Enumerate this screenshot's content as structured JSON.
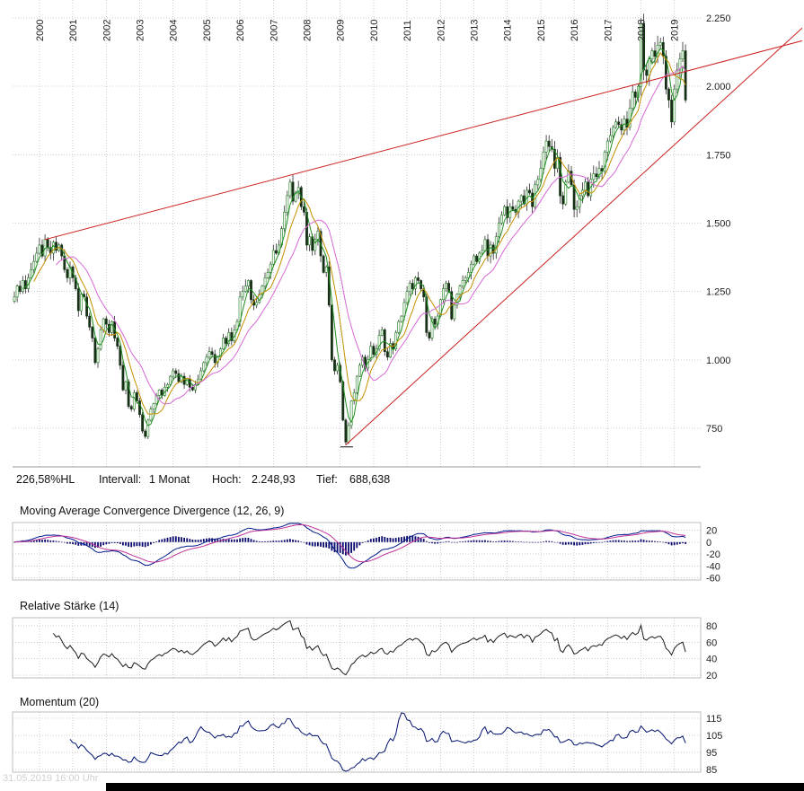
{
  "status": {
    "range": "226,58%HL",
    "interval_label": "Intervall:",
    "interval_value": "1 Monat",
    "high_label": "Hoch:",
    "high_value": "2.248,93",
    "low_label": "Tief:",
    "low_value": "688,638"
  },
  "footer": {
    "timestamp": "31.05.2019 16:00 Uhr"
  },
  "colors": {
    "grid": "#cdcdcd",
    "trendline": "#cc2222",
    "wick": "#2b2b2b",
    "candle_up_fill": "#ffffff",
    "candle_up_stroke": "#1e7d1e",
    "candle_down_fill": "#173017",
    "macd_line": "#001a8b",
    "macd_signal": "#c03399",
    "macd_hist": "#0a0a6e",
    "rsi_line": "#1a1a1a",
    "momentum_line": "#00106e"
  },
  "chart_data": [
    {
      "type": "candlestick",
      "interval": "1 Monat",
      "start": "1999-04",
      "years": [
        2000,
        2001,
        2002,
        2003,
        2004,
        2005,
        2006,
        2007,
        2008,
        2009,
        2010,
        2011,
        2012,
        2013,
        2014,
        2015,
        2016,
        2017,
        2018,
        2019
      ],
      "yticks": [
        2250,
        2000,
        1750,
        1500,
        1250,
        1000,
        750
      ],
      "ytick_labels": [
        "2.250",
        "2.000",
        "1.750",
        "1.500",
        "1.250",
        "1.000",
        "750"
      ],
      "hoch": 2248.93,
      "tief": 688.638,
      "extremes": {
        "high_index": 225,
        "high": 2248.93,
        "low_index": 119,
        "low": 688.638
      },
      "closes": [
        1230,
        1270,
        1250,
        1290,
        1260,
        1300,
        1330,
        1360,
        1390,
        1420,
        1380,
        1440,
        1410,
        1390,
        1430,
        1400,
        1420,
        1380,
        1330,
        1300,
        1340,
        1300,
        1260,
        1180,
        1240,
        1230,
        1160,
        1120,
        1080,
        990,
        1040,
        1110,
        1150,
        1130,
        1100,
        1140,
        1080,
        1050,
        980,
        890,
        920,
        830,
        820,
        880,
        850,
        800,
        740,
        720,
        780,
        820,
        840,
        870,
        890,
        870,
        900,
        910,
        940,
        960,
        950,
        920,
        940,
        910,
        930,
        900,
        890,
        910,
        930,
        960,
        990,
        1010,
        1030,
        1020,
        990,
        1010,
        1040,
        1080,
        1060,
        1100,
        1070,
        1110,
        1140,
        1230,
        1250,
        1270,
        1290,
        1220,
        1200,
        1210,
        1240,
        1270,
        1300,
        1320,
        1350,
        1400,
        1390,
        1420,
        1480,
        1540,
        1600,
        1650,
        1580,
        1610,
        1630,
        1560,
        1540,
        1420,
        1450,
        1400,
        1440,
        1470,
        1380,
        1320,
        1340,
        1200,
        1000,
        960,
        980,
        920,
        780,
        700,
        760,
        850,
        880,
        940,
        980,
        1010,
        970,
        1000,
        1050,
        1020,
        1040,
        1090,
        1110,
        1030,
        1010,
        1060,
        1040,
        1100,
        1140,
        1160,
        1210,
        1250,
        1280,
        1260,
        1300,
        1290,
        1260,
        1230,
        1100,
        1080,
        1150,
        1130,
        1160,
        1220,
        1260,
        1280,
        1250,
        1150,
        1200,
        1240,
        1270,
        1290,
        1300,
        1320,
        1350,
        1380,
        1360,
        1390,
        1400,
        1440,
        1380,
        1420,
        1390,
        1450,
        1500,
        1530,
        1560,
        1520,
        1560,
        1550,
        1540,
        1580,
        1600,
        1570,
        1620,
        1610,
        1560,
        1640,
        1660,
        1700,
        1760,
        1800,
        1780,
        1770,
        1700,
        1740,
        1600,
        1570,
        1650,
        1690,
        1640,
        1550,
        1560,
        1600,
        1620,
        1650,
        1600,
        1660,
        1680,
        1670,
        1700,
        1690,
        1760,
        1800,
        1820,
        1850,
        1870,
        1860,
        1840,
        1880,
        1850,
        1920,
        1980,
        1960,
        2000,
        2230,
        2060,
        2040,
        2100,
        2130,
        2110,
        2150,
        2160,
        2110,
        1990,
        1950,
        1870,
        1990,
        2060,
        2100,
        2130,
        1950
      ],
      "moving_averages": [
        {
          "period": 4,
          "color": "#1f8f1f"
        },
        {
          "period": 8,
          "color": "#c49000"
        },
        {
          "period": 16,
          "color": "#d668d6"
        }
      ],
      "trendlines": [
        {
          "i1": 11,
          "v1": 1440,
          "i2": 246,
          "v2": 2068
        },
        {
          "i1": 119,
          "v1": 689,
          "i2": 246,
          "v2": 1870
        }
      ]
    },
    {
      "type": "line+histogram",
      "title": "Moving Average Convergence Divergence (12, 26, 9)",
      "params": [
        12,
        26,
        9
      ],
      "scale": 3.2,
      "yticks": [
        20,
        0,
        -20,
        -40,
        -60
      ],
      "ytick_labels": [
        "20",
        "0",
        "-20",
        "-40",
        "-60"
      ]
    },
    {
      "type": "line",
      "title": "Relative Stärke (14)",
      "period": 14,
      "yticks": [
        80,
        60,
        40,
        20
      ],
      "ytick_labels": [
        "80",
        "60",
        "40",
        "20"
      ]
    },
    {
      "type": "line",
      "title": "Momentum (20)",
      "period": 20,
      "damping": 0.3,
      "yticks": [
        115,
        105,
        95,
        85
      ],
      "ytick_labels": [
        "115",
        "105",
        "95",
        "85"
      ]
    }
  ]
}
